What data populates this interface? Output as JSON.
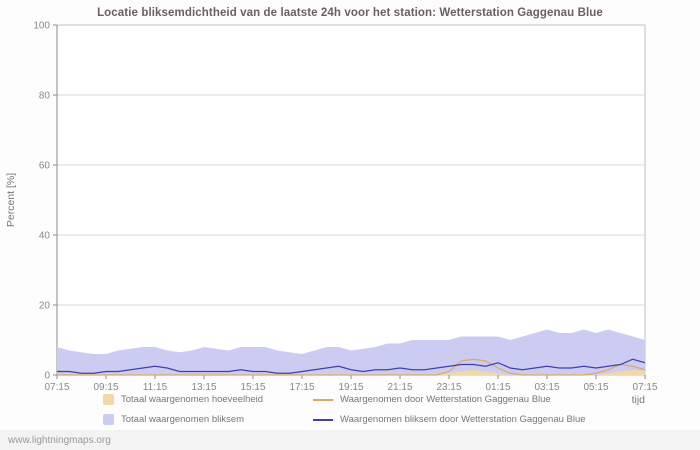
{
  "watermark": "www.lightningmaps.org",
  "legend": {
    "items": [
      {
        "label": "Totaal waargenomen hoeveelheid",
        "type": "area",
        "color": "#f2d8a4"
      },
      {
        "label": "Waargenomen door Wetterstation Gaggenau Blue",
        "type": "line",
        "color": "#e2a75f"
      },
      {
        "label": "Totaal waargenomen bliksem",
        "type": "area",
        "color": "#ccccf2"
      },
      {
        "label": "Waargenomen bliksem door Wetterstation Gaggenau Blue",
        "type": "line",
        "color": "#4040a8"
      }
    ]
  },
  "chart_data": {
    "type": "area",
    "title": "Locatie bliksemdichtheid van de laatste 24h voor het station: Wetterstation Gaggenau Blue",
    "xlabel": "tijd",
    "ylabel": "Percent  [%]",
    "ylim": [
      0,
      100
    ],
    "yticks": [
      0,
      20,
      40,
      60,
      80,
      100
    ],
    "xticks": [
      "07:15",
      "09:15",
      "11:15",
      "13:15",
      "15:15",
      "17:15",
      "19:15",
      "21:15",
      "23:15",
      "01:15",
      "03:15",
      "05:15",
      "07:15"
    ],
    "x_interval_minutes": 30,
    "grid": true,
    "legend_position": "bottom",
    "series": [
      {
        "name": "Totaal waargenomen bliksem",
        "type": "area",
        "color": "#ccccf2",
        "values": [
          8,
          7,
          6.5,
          6,
          6,
          7,
          7.5,
          8,
          8,
          7,
          6.5,
          7,
          8,
          7.5,
          7,
          8,
          8,
          8,
          7,
          6.5,
          6,
          7,
          8,
          8,
          7,
          7.5,
          8,
          9,
          9,
          10,
          10,
          10,
          10,
          11,
          11,
          11,
          11,
          10,
          11,
          12,
          13,
          12,
          12,
          13,
          12,
          13,
          12,
          11,
          10
        ]
      },
      {
        "name": "Totaal waargenomen hoeveelheid",
        "type": "area",
        "color": "#f2d8a4",
        "values": [
          0,
          0,
          0,
          0,
          0,
          0,
          0,
          0,
          0,
          0,
          0,
          0,
          0,
          0,
          0,
          0,
          0,
          0,
          0,
          0,
          0,
          0,
          0,
          0,
          0,
          0,
          0,
          0,
          0,
          0,
          0,
          0,
          0.5,
          1,
          1.5,
          1,
          0.5,
          0,
          0,
          0,
          0,
          0,
          0,
          0,
          0,
          0.5,
          1,
          1.5,
          1
        ]
      },
      {
        "name": "Waargenomen door Wetterstation Gaggenau Blue",
        "type": "line",
        "color": "#e2a75f",
        "values": [
          0,
          0,
          0,
          0,
          0,
          0,
          0,
          0,
          0,
          0,
          0,
          0,
          0,
          0,
          0,
          0,
          0,
          0,
          0,
          0,
          0,
          0,
          0,
          0,
          0,
          0,
          0,
          0,
          0,
          0,
          0,
          0,
          1,
          4,
          4.5,
          4,
          2,
          0.5,
          0,
          0,
          0,
          0,
          0,
          0,
          0.5,
          1.5,
          3,
          2.5,
          1.5
        ]
      },
      {
        "name": "Waargenomen bliksem door Wetterstation Gaggenau Blue",
        "type": "line",
        "color": "#4040a8",
        "values": [
          1,
          1,
          0.5,
          0.5,
          1,
          1,
          1.5,
          2,
          2.5,
          2,
          1,
          1,
          1,
          1,
          1,
          1.5,
          1,
          1,
          0.5,
          0.5,
          1,
          1.5,
          2,
          2.5,
          1.5,
          1,
          1.5,
          1.5,
          2,
          1.5,
          1.5,
          2,
          2.5,
          3,
          3,
          2.5,
          3.5,
          2,
          1.5,
          2,
          2.5,
          2,
          2,
          2.5,
          2,
          2.5,
          3,
          4.5,
          3.5
        ]
      }
    ]
  }
}
